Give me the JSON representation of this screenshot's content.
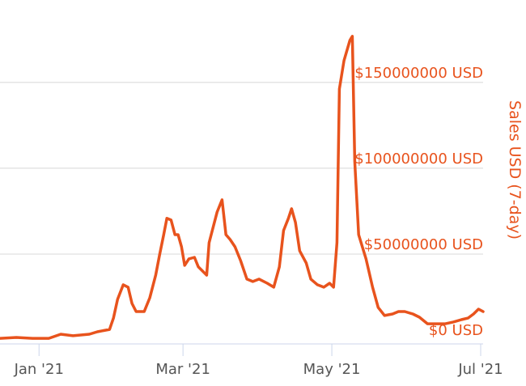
{
  "chart_data": {
    "type": "line",
    "y_label": "Sales USD (7-day)",
    "x": [
      -15.9,
      -9.3,
      -2.7,
      4.0,
      8.9,
      13.9,
      20.6,
      23.9,
      28.9,
      30.5,
      32.2,
      34.5,
      36.5,
      38.1,
      39.8,
      43.1,
      45.4,
      47.8,
      49.4,
      51.1,
      52.4,
      54.1,
      55.7,
      57.0,
      58.4,
      59.7,
      61.4,
      63.7,
      65.3,
      68.7,
      69.7,
      71.0,
      73.0,
      75.0,
      76.6,
      78.3,
      80.3,
      82.6,
      85.2,
      87.6,
      90.2,
      93.5,
      96.2,
      98.5,
      100.2,
      102.2,
      103.5,
      105.1,
      106.8,
      109.5,
      111.4,
      114.1,
      116.7,
      119.1,
      120.7,
      122.1,
      123.1,
      125.0,
      127.4,
      128.4,
      129.4,
      131.0,
      134.0,
      136.7,
      139.0,
      141.6,
      144.9,
      147.3,
      149.9,
      153.2,
      155.9,
      159.2,
      163.2,
      166.5,
      169.8,
      173.1,
      175.8,
      178.1,
      180.1,
      182.0
    ],
    "series": [
      {
        "name": "Sales USD (7-day)",
        "color": "#e8531d",
        "values": [
          900000,
          1400000,
          900000,
          900000,
          3300000,
          2400000,
          3300000,
          4700000,
          6100000,
          12700000,
          23600000,
          32100000,
          30700000,
          21200000,
          16500000,
          16500000,
          24500000,
          37700000,
          49500000,
          61300000,
          70800000,
          69800000,
          61300000,
          61300000,
          54200000,
          43400000,
          47200000,
          48100000,
          42500000,
          37700000,
          56600000,
          63700000,
          74500000,
          81600000,
          61300000,
          58500000,
          54200000,
          46200000,
          35400000,
          34000000,
          35400000,
          33000000,
          30700000,
          42500000,
          63700000,
          70800000,
          76400000,
          68400000,
          51900000,
          44800000,
          35400000,
          32100000,
          30700000,
          33000000,
          30700000,
          56600000,
          146200000,
          162700000,
          174500000,
          176900000,
          103800000,
          61300000,
          47200000,
          30700000,
          18900000,
          14200000,
          15100000,
          16500000,
          16500000,
          15100000,
          13200000,
          9400000,
          9400000,
          9400000,
          10400000,
          11800000,
          12700000,
          15100000,
          17900000,
          16500000
        ]
      }
    ],
    "xlim": [
      -16,
      182
    ],
    "xticks": [
      {
        "value": 0,
        "label": "Jan '21"
      },
      {
        "value": 59,
        "label": "Mar '21"
      },
      {
        "value": 120,
        "label": "May '21"
      },
      {
        "value": 181,
        "label": "Jul '21"
      }
    ],
    "ylim": [
      0,
      198000000
    ],
    "yticks": [
      {
        "value": 0,
        "label": "$0 USD"
      },
      {
        "value": 50000000,
        "label": "$50000000 USD"
      },
      {
        "value": 100000000,
        "label": "$100000000 USD"
      },
      {
        "value": 150000000,
        "label": "$150000000 USD"
      }
    ],
    "grid": true
  }
}
